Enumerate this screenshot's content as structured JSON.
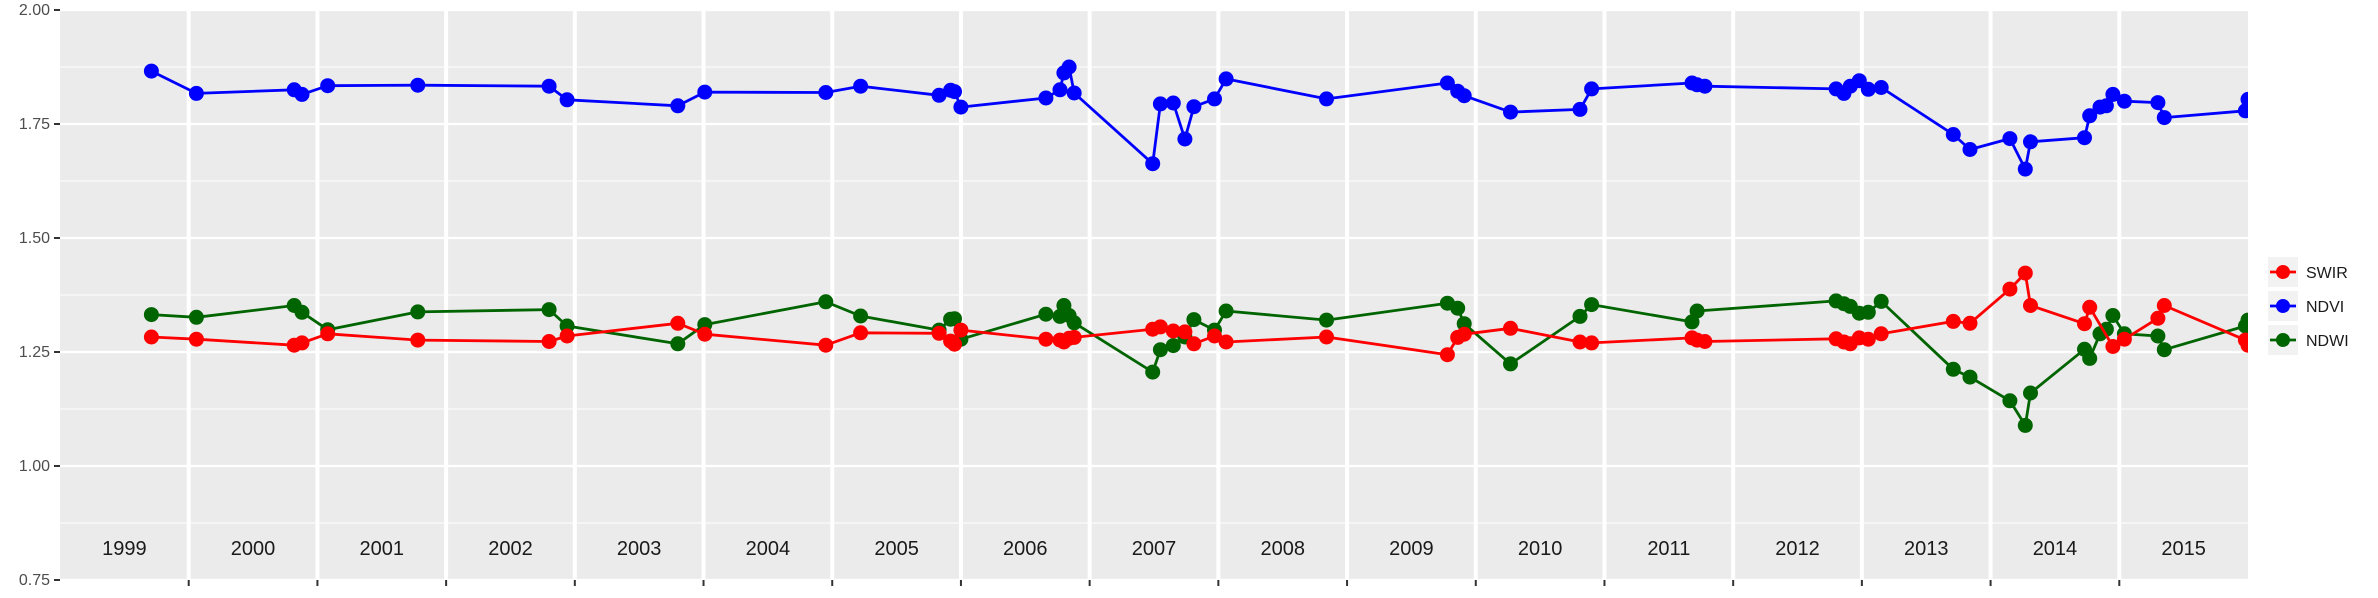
{
  "chart_data": {
    "type": "line",
    "title": "",
    "xlabel": "",
    "ylabel": "",
    "ylim": [
      0.75,
      2.0
    ],
    "xlim": [
      1999.0,
      2016.0
    ],
    "y_ticks": [
      "0.75",
      "1.00",
      "1.25",
      "1.50",
      "1.75",
      "2.00"
    ],
    "x_year_labels": [
      "1999",
      "2000",
      "2001",
      "2002",
      "2003",
      "2004",
      "2005",
      "2006",
      "2007",
      "2008",
      "2009",
      "2010",
      "2011",
      "2012",
      "2013",
      "2014",
      "2015"
    ],
    "grid": true,
    "legend_position": "right",
    "colors": {
      "SWIR": "#ff0000",
      "NDVI": "#0000ff",
      "NDWI": "#006400",
      "panel": "#ebebeb",
      "grid": "#ffffff"
    },
    "series": [
      {
        "name": "SWIR",
        "color": "#ff0000",
        "points": [
          [
            1999.71,
            1.283
          ],
          [
            2000.06,
            1.278
          ],
          [
            2000.82,
            1.265
          ],
          [
            2000.88,
            1.27
          ],
          [
            2001.08,
            1.29
          ],
          [
            2001.78,
            1.276
          ],
          [
            2002.8,
            1.273
          ],
          [
            2002.94,
            1.285
          ],
          [
            2003.8,
            1.313
          ],
          [
            2004.01,
            1.289
          ],
          [
            2004.95,
            1.265
          ],
          [
            2005.22,
            1.292
          ],
          [
            2005.83,
            1.291
          ],
          [
            2005.92,
            1.274
          ],
          [
            2005.95,
            1.267
          ],
          [
            2006.0,
            1.298
          ],
          [
            2006.66,
            1.278
          ],
          [
            2006.77,
            1.276
          ],
          [
            2006.8,
            1.272
          ],
          [
            2006.84,
            1.28
          ],
          [
            2006.88,
            1.282
          ],
          [
            2007.49,
            1.3
          ],
          [
            2007.55,
            1.305
          ],
          [
            2007.65,
            1.296
          ],
          [
            2007.74,
            1.294
          ],
          [
            2007.81,
            1.268
          ],
          [
            2007.97,
            1.285
          ],
          [
            2008.06,
            1.272
          ],
          [
            2008.84,
            1.283
          ],
          [
            2009.78,
            1.244
          ],
          [
            2009.86,
            1.282
          ],
          [
            2009.91,
            1.289
          ],
          [
            2010.27,
            1.302
          ],
          [
            2010.81,
            1.272
          ],
          [
            2010.9,
            1.27
          ],
          [
            2011.68,
            1.281
          ],
          [
            2011.72,
            1.276
          ],
          [
            2011.78,
            1.273
          ],
          [
            2012.8,
            1.279
          ],
          [
            2012.86,
            1.272
          ],
          [
            2012.91,
            1.268
          ],
          [
            2012.98,
            1.281
          ],
          [
            2013.05,
            1.278
          ],
          [
            2013.15,
            1.29
          ],
          [
            2013.71,
            1.317
          ],
          [
            2013.84,
            1.313
          ],
          [
            2014.15,
            1.388
          ],
          [
            2014.27,
            1.423
          ],
          [
            2014.31,
            1.352
          ],
          [
            2014.73,
            1.312
          ],
          [
            2014.77,
            1.348
          ],
          [
            2014.95,
            1.262
          ],
          [
            2015.04,
            1.278
          ],
          [
            2015.3,
            1.324
          ],
          [
            2015.35,
            1.352
          ],
          [
            2015.98,
            1.276
          ],
          [
            2016.0,
            1.265
          ]
        ]
      },
      {
        "name": "NDVI",
        "color": "#0000ff",
        "points": [
          [
            1999.71,
            1.866
          ],
          [
            2000.06,
            1.817
          ],
          [
            2000.82,
            1.825
          ],
          [
            2000.88,
            1.815
          ],
          [
            2001.08,
            1.834
          ],
          [
            2001.78,
            1.835
          ],
          [
            2002.8,
            1.833
          ],
          [
            2002.94,
            1.803
          ],
          [
            2003.8,
            1.79
          ],
          [
            2004.01,
            1.82
          ],
          [
            2004.95,
            1.819
          ],
          [
            2005.22,
            1.833
          ],
          [
            2005.83,
            1.813
          ],
          [
            2005.92,
            1.824
          ],
          [
            2005.95,
            1.821
          ],
          [
            2006.0,
            1.787
          ],
          [
            2006.66,
            1.807
          ],
          [
            2006.77,
            1.825
          ],
          [
            2006.8,
            1.862
          ],
          [
            2006.84,
            1.875
          ],
          [
            2006.88,
            1.818
          ],
          [
            2007.49,
            1.663
          ],
          [
            2007.55,
            1.794
          ],
          [
            2007.65,
            1.796
          ],
          [
            2007.74,
            1.717
          ],
          [
            2007.81,
            1.788
          ],
          [
            2007.97,
            1.805
          ],
          [
            2008.06,
            1.849
          ],
          [
            2008.84,
            1.805
          ],
          [
            2009.78,
            1.84
          ],
          [
            2009.86,
            1.822
          ],
          [
            2009.91,
            1.812
          ],
          [
            2010.27,
            1.776
          ],
          [
            2010.81,
            1.782
          ],
          [
            2010.9,
            1.827
          ],
          [
            2011.68,
            1.84
          ],
          [
            2011.72,
            1.836
          ],
          [
            2011.78,
            1.833
          ],
          [
            2012.8,
            1.827
          ],
          [
            2012.86,
            1.817
          ],
          [
            2012.91,
            1.833
          ],
          [
            2012.98,
            1.845
          ],
          [
            2013.05,
            1.826
          ],
          [
            2013.15,
            1.83
          ],
          [
            2013.71,
            1.727
          ],
          [
            2013.84,
            1.694
          ],
          [
            2014.15,
            1.718
          ],
          [
            2014.27,
            1.651
          ],
          [
            2014.31,
            1.711
          ],
          [
            2014.73,
            1.72
          ],
          [
            2014.77,
            1.768
          ],
          [
            2014.85,
            1.787
          ],
          [
            2014.9,
            1.79
          ],
          [
            2014.95,
            1.815
          ],
          [
            2015.04,
            1.8
          ],
          [
            2015.3,
            1.797
          ],
          [
            2015.35,
            1.764
          ],
          [
            2015.98,
            1.779
          ],
          [
            2016.0,
            1.804
          ]
        ]
      },
      {
        "name": "NDWI",
        "color": "#006400",
        "points": [
          [
            1999.71,
            1.332
          ],
          [
            2000.06,
            1.326
          ],
          [
            2000.82,
            1.352
          ],
          [
            2000.88,
            1.337
          ],
          [
            2001.08,
            1.299
          ],
          [
            2001.78,
            1.338
          ],
          [
            2002.8,
            1.343
          ],
          [
            2002.94,
            1.307
          ],
          [
            2003.8,
            1.268
          ],
          [
            2004.01,
            1.31
          ],
          [
            2004.95,
            1.36
          ],
          [
            2005.22,
            1.329
          ],
          [
            2005.83,
            1.298
          ],
          [
            2005.92,
            1.322
          ],
          [
            2005.95,
            1.323
          ],
          [
            2006.0,
            1.278
          ],
          [
            2006.66,
            1.333
          ],
          [
            2006.77,
            1.328
          ],
          [
            2006.8,
            1.352
          ],
          [
            2006.84,
            1.33
          ],
          [
            2006.88,
            1.314
          ],
          [
            2007.49,
            1.206
          ],
          [
            2007.55,
            1.255
          ],
          [
            2007.65,
            1.264
          ],
          [
            2007.74,
            1.283
          ],
          [
            2007.81,
            1.321
          ],
          [
            2007.97,
            1.298
          ],
          [
            2008.06,
            1.34
          ],
          [
            2008.84,
            1.32
          ],
          [
            2009.78,
            1.357
          ],
          [
            2009.86,
            1.346
          ],
          [
            2009.91,
            1.312
          ],
          [
            2010.27,
            1.224
          ],
          [
            2010.81,
            1.328
          ],
          [
            2010.9,
            1.354
          ],
          [
            2011.68,
            1.316
          ],
          [
            2011.72,
            1.34
          ],
          [
            2012.8,
            1.362
          ],
          [
            2012.86,
            1.356
          ],
          [
            2012.91,
            1.35
          ],
          [
            2012.98,
            1.335
          ],
          [
            2013.05,
            1.337
          ],
          [
            2013.15,
            1.361
          ],
          [
            2013.71,
            1.212
          ],
          [
            2013.84,
            1.195
          ],
          [
            2014.15,
            1.143
          ],
          [
            2014.27,
            1.089
          ],
          [
            2014.31,
            1.16
          ],
          [
            2014.73,
            1.256
          ],
          [
            2014.77,
            1.236
          ],
          [
            2014.85,
            1.29
          ],
          [
            2014.9,
            1.3
          ],
          [
            2014.95,
            1.33
          ],
          [
            2015.04,
            1.29
          ],
          [
            2015.3,
            1.285
          ],
          [
            2015.35,
            1.255
          ],
          [
            2015.98,
            1.307
          ],
          [
            2016.0,
            1.32
          ]
        ]
      }
    ],
    "legend": [
      {
        "label": "SWIR",
        "color": "#ff0000"
      },
      {
        "label": "NDVI",
        "color": "#0000ff"
      },
      {
        "label": "NDWI",
        "color": "#006400"
      }
    ]
  }
}
